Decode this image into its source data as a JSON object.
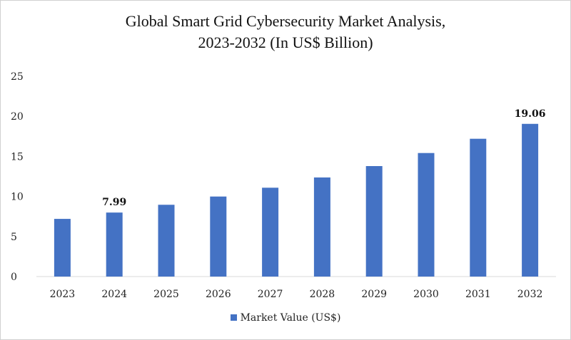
{
  "chart_data": {
    "type": "bar",
    "title_lines": [
      "Global Smart Grid Cybersecurity Market Analysis,",
      "2023-2032 (In US$ Billion)"
    ],
    "categories": [
      "2023",
      "2024",
      "2025",
      "2026",
      "2027",
      "2028",
      "2029",
      "2030",
      "2031",
      "2032"
    ],
    "series": [
      {
        "name": "Market Value (US$)",
        "values": [
          7.2,
          7.99,
          8.96,
          9.99,
          11.09,
          12.37,
          13.79,
          15.42,
          17.2,
          19.06
        ],
        "color": "#4472c4"
      }
    ],
    "data_labels": [
      {
        "category": "2024",
        "text": "7.99"
      },
      {
        "category": "2032",
        "text": "19.06"
      }
    ],
    "ylim": [
      0,
      25
    ],
    "yticks": [
      "0",
      "5",
      "10",
      "15",
      "20",
      "25"
    ],
    "grid": false,
    "legend": "bottom"
  }
}
